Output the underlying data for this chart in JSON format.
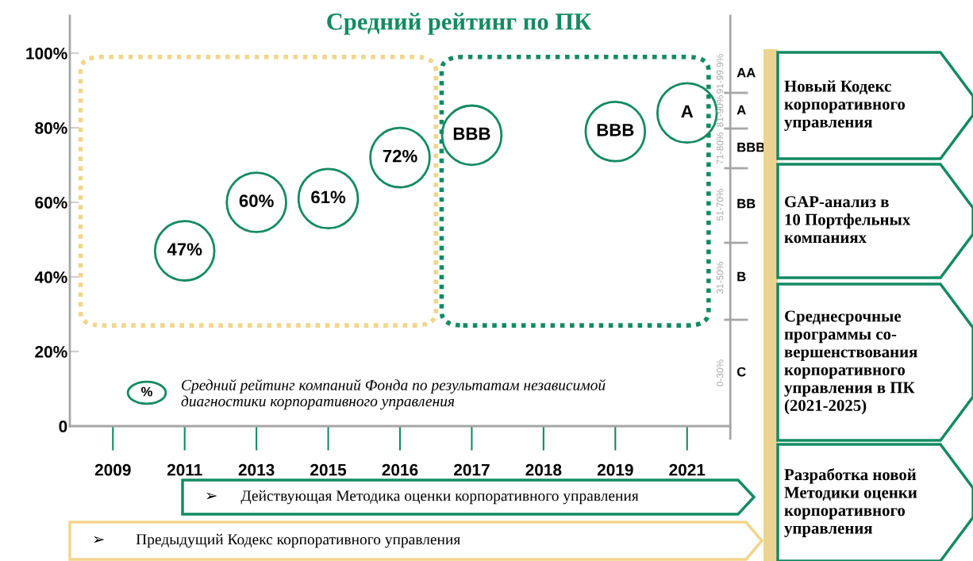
{
  "chart_data": [
    {
      "type": "scatter",
      "title": "Средний рейтинг по ПК",
      "categories": [
        "2009",
        "2011",
        "2013",
        "2015",
        "2016",
        "2017",
        "2018",
        "2019",
        "2021"
      ],
      "series": [
        {
          "color": "#138a63",
          "values": [
            null,
            47,
            60,
            61,
            72,
            78,
            null,
            79,
            84
          ],
          "value_labels": [
            null,
            "47%",
            "60%",
            "61%",
            "72%",
            "BBB",
            null,
            "BBB",
            "A"
          ]
        }
      ],
      "marker": "circle",
      "ylim": [
        0,
        110
      ],
      "yticks": [
        {
          "value": 0,
          "label": "0"
        },
        {
          "value": 20,
          "label": "20%"
        },
        {
          "value": 40,
          "label": "40%"
        },
        {
          "value": 60,
          "label": "60%"
        },
        {
          "value": 80,
          "label": "80%"
        },
        {
          "value": 100,
          "label": "100%"
        }
      ],
      "grid": false,
      "legend": false,
      "annotations": [
        "%",
        "Средний рейтинг компаний Фонда по результатам независимой\nдиагностики корпоративного управления",
        "➢      Действующая Методика оценки корпоративного управления",
        "➢        Предыдущий Кодекс корпоративного управления",
        "Новый Кодекс\nкорпоративного\nуправления",
        "GAP-анализ в\n10 Портфельных\nкомпаниях",
        "Среднесрочные\nпрограммы со-\nвершенствования\nкорпоративного\nуправления в ПК\n(2021-2025)",
        "Разработка новой\nМетодики оценки\nкорпоративного\nуправления"
      ]
    },
    {
      "type": "other",
      "annotations": [
        "91-99.9%",
        "AA",
        "81-90%",
        "A",
        "71-80%",
        "BBB",
        "51-70%",
        "BB",
        "31-50%",
        "B",
        "0-30%",
        "C"
      ]
    }
  ]
}
